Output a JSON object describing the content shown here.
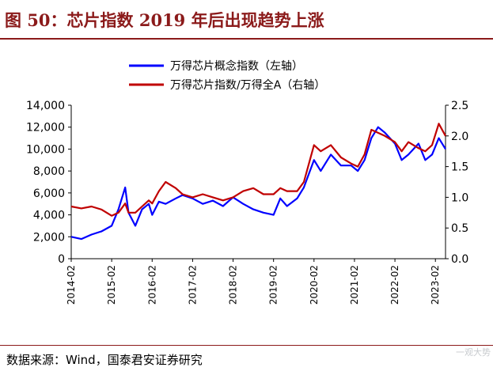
{
  "header": {
    "title": "图 50：芯片指数 2019 年后出现趋势上涨"
  },
  "footer": {
    "source": "数据来源：Wind，国泰君安证券研究",
    "watermark_text": "一观大势"
  },
  "chart_data": {
    "type": "line",
    "title": "",
    "legend_position": "top-center",
    "grid": false,
    "x_ticks": [
      "2014-02",
      "2015-02",
      "2016-02",
      "2017-02",
      "2018-02",
      "2019-02",
      "2020-02",
      "2021-02",
      "2022-02",
      "2023-02"
    ],
    "xlim": [
      "2014-02",
      "2023-05"
    ],
    "left_axis": {
      "ylim": [
        0,
        14000
      ],
      "ticks": [
        "0",
        "2,000",
        "4,000",
        "6,000",
        "8,000",
        "10,000",
        "12,000",
        "14,000"
      ]
    },
    "right_axis": {
      "ylim": [
        0,
        2.5
      ],
      "ticks": [
        "0.0",
        "0.5",
        "1.0",
        "1.5",
        "2.0",
        "2.5"
      ]
    },
    "series": [
      {
        "name": "万得芯片概念指数（左轴）",
        "axis": "left",
        "color": "#0000ff",
        "points": [
          [
            "2014-02",
            2000
          ],
          [
            "2014-05",
            1800
          ],
          [
            "2014-08",
            2200
          ],
          [
            "2014-11",
            2500
          ],
          [
            "2015-02",
            3000
          ],
          [
            "2015-04",
            4500
          ],
          [
            "2015-06",
            6500
          ],
          [
            "2015-07",
            4200
          ],
          [
            "2015-09",
            3000
          ],
          [
            "2015-11",
            4500
          ],
          [
            "2016-01",
            5000
          ],
          [
            "2016-02",
            4000
          ],
          [
            "2016-04",
            5200
          ],
          [
            "2016-06",
            5000
          ],
          [
            "2016-09",
            5500
          ],
          [
            "2016-11",
            5800
          ],
          [
            "2017-02",
            5500
          ],
          [
            "2017-05",
            5000
          ],
          [
            "2017-08",
            5300
          ],
          [
            "2017-11",
            4800
          ],
          [
            "2018-02",
            5600
          ],
          [
            "2018-05",
            5000
          ],
          [
            "2018-08",
            4500
          ],
          [
            "2018-11",
            4200
          ],
          [
            "2019-02",
            4000
          ],
          [
            "2019-04",
            5500
          ],
          [
            "2019-06",
            4800
          ],
          [
            "2019-09",
            5500
          ],
          [
            "2019-11",
            6500
          ],
          [
            "2020-02",
            9000
          ],
          [
            "2020-04",
            8000
          ],
          [
            "2020-07",
            9500
          ],
          [
            "2020-10",
            8500
          ],
          [
            "2021-01",
            8500
          ],
          [
            "2021-03",
            8000
          ],
          [
            "2021-05",
            9000
          ],
          [
            "2021-07",
            11000
          ],
          [
            "2021-09",
            12000
          ],
          [
            "2021-11",
            11500
          ],
          [
            "2022-02",
            10500
          ],
          [
            "2022-04",
            9000
          ],
          [
            "2022-06",
            9500
          ],
          [
            "2022-09",
            10500
          ],
          [
            "2022-11",
            9000
          ],
          [
            "2023-01",
            9500
          ],
          [
            "2023-03",
            11000
          ],
          [
            "2023-05",
            10000
          ]
        ]
      },
      {
        "name": "万得芯片指数/万得全A（右轴）",
        "axis": "right",
        "color": "#c00000",
        "points": [
          [
            "2014-02",
            0.85
          ],
          [
            "2014-05",
            0.82
          ],
          [
            "2014-08",
            0.85
          ],
          [
            "2014-11",
            0.8
          ],
          [
            "2015-02",
            0.7
          ],
          [
            "2015-04",
            0.75
          ],
          [
            "2015-06",
            0.9
          ],
          [
            "2015-07",
            0.75
          ],
          [
            "2015-09",
            0.75
          ],
          [
            "2015-11",
            0.85
          ],
          [
            "2016-01",
            0.95
          ],
          [
            "2016-02",
            0.9
          ],
          [
            "2016-04",
            1.1
          ],
          [
            "2016-06",
            1.25
          ],
          [
            "2016-09",
            1.15
          ],
          [
            "2016-11",
            1.05
          ],
          [
            "2017-02",
            1.0
          ],
          [
            "2017-05",
            1.05
          ],
          [
            "2017-08",
            1.0
          ],
          [
            "2017-11",
            0.95
          ],
          [
            "2018-02",
            1.0
          ],
          [
            "2018-05",
            1.1
          ],
          [
            "2018-08",
            1.15
          ],
          [
            "2018-11",
            1.05
          ],
          [
            "2019-02",
            1.05
          ],
          [
            "2019-04",
            1.15
          ],
          [
            "2019-06",
            1.1
          ],
          [
            "2019-09",
            1.1
          ],
          [
            "2019-11",
            1.25
          ],
          [
            "2020-02",
            1.85
          ],
          [
            "2020-04",
            1.75
          ],
          [
            "2020-07",
            1.85
          ],
          [
            "2020-10",
            1.65
          ],
          [
            "2021-01",
            1.55
          ],
          [
            "2021-03",
            1.5
          ],
          [
            "2021-05",
            1.7
          ],
          [
            "2021-07",
            2.1
          ],
          [
            "2021-09",
            2.05
          ],
          [
            "2021-11",
            2.0
          ],
          [
            "2022-02",
            1.9
          ],
          [
            "2022-04",
            1.75
          ],
          [
            "2022-06",
            1.9
          ],
          [
            "2022-09",
            1.8
          ],
          [
            "2022-11",
            1.75
          ],
          [
            "2023-01",
            1.85
          ],
          [
            "2023-03",
            2.2
          ],
          [
            "2023-05",
            2.0
          ]
        ]
      }
    ]
  }
}
